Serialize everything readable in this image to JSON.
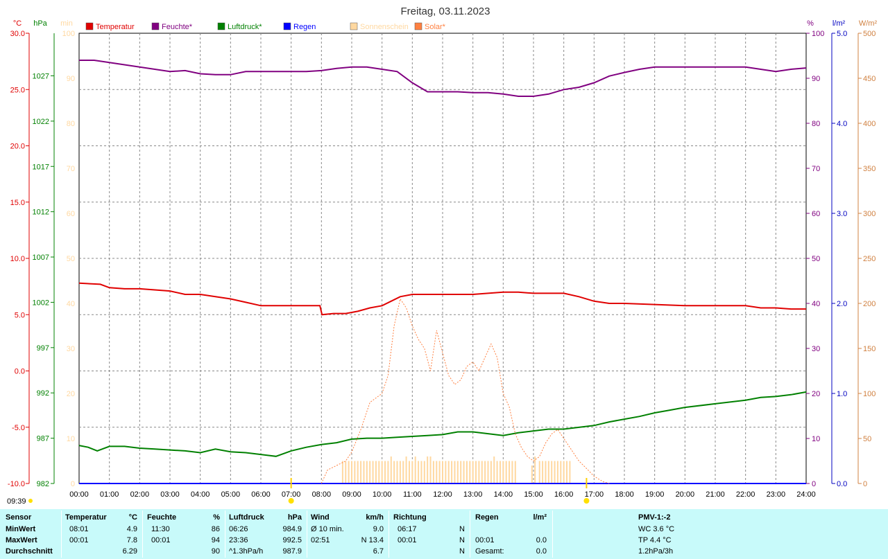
{
  "chart_data": {
    "type": "line",
    "title": "Freitag, 03.11.2023",
    "x": [
      "00:00",
      "01:00",
      "02:00",
      "03:00",
      "04:00",
      "05:00",
      "06:00",
      "07:00",
      "08:00",
      "09:00",
      "10:00",
      "11:00",
      "12:00",
      "13:00",
      "14:00",
      "15:00",
      "16:00",
      "17:00",
      "18:00",
      "19:00",
      "20:00",
      "21:00",
      "22:00",
      "23:00",
      "24:00"
    ],
    "axes": {
      "temperature": {
        "unit": "°C",
        "range": [
          -10,
          30
        ],
        "ticks": [
          "30.0",
          "25.0",
          "20.0",
          "15.0",
          "10.0",
          "5.0",
          "0.0",
          "-5.0",
          "-10.0"
        ],
        "color": "#e00000"
      },
      "pressure": {
        "unit": "hPa",
        "range": [
          982,
          1031.7
        ],
        "ticks": [
          "1027",
          "1022",
          "1017",
          "1012",
          "1007",
          "1002",
          "997",
          "992",
          "987",
          "982"
        ],
        "color": "#008000"
      },
      "sunshine": {
        "unit": "min",
        "range": [
          0,
          100
        ],
        "ticks": [
          "100",
          "90",
          "80",
          "70",
          "60",
          "50",
          "40",
          "30",
          "20",
          "10",
          "0"
        ],
        "color": "#ffd8a0"
      },
      "humidity": {
        "unit": "%",
        "range": [
          0,
          100
        ],
        "ticks": [
          "100",
          "90",
          "80",
          "70",
          "60",
          "50",
          "40",
          "30",
          "20",
          "10",
          "0"
        ],
        "color": "#800080"
      },
      "rain": {
        "unit": "l/m²",
        "range": [
          0,
          5
        ],
        "ticks": [
          "5.0",
          "4.0",
          "3.0",
          "2.0",
          "1.0",
          "0.0"
        ],
        "color": "#0000c0"
      },
      "solar": {
        "unit": "W/m²",
        "range": [
          0,
          500
        ],
        "ticks": [
          "500",
          "450",
          "400",
          "350",
          "300",
          "250",
          "200",
          "150",
          "100",
          "50",
          "0"
        ],
        "color": "#d08040"
      }
    },
    "legend": [
      {
        "name": "Temperatur",
        "color": "#e00000"
      },
      {
        "name": "Feuchte*",
        "color": "#800080"
      },
      {
        "name": "Luftdruck*",
        "color": "#008000"
      },
      {
        "name": "Regen",
        "color": "#0000ff"
      },
      {
        "name": "Sonnenschein",
        "color": "#ffd8a0"
      },
      {
        "name": "Solar*",
        "color": "#ff8040"
      }
    ],
    "series": [
      {
        "name": "Temperatur",
        "color": "#e00000",
        "points": [
          [
            0,
            7.8
          ],
          [
            0.7,
            7.7
          ],
          [
            1,
            7.4
          ],
          [
            1.5,
            7.3
          ],
          [
            2,
            7.3
          ],
          [
            2.5,
            7.2
          ],
          [
            3,
            7.1
          ],
          [
            3.5,
            6.8
          ],
          [
            4,
            6.8
          ],
          [
            4.5,
            6.6
          ],
          [
            5,
            6.4
          ],
          [
            5.5,
            6.1
          ],
          [
            6,
            5.8
          ],
          [
            6.5,
            5.8
          ],
          [
            7,
            5.8
          ],
          [
            7.5,
            5.8
          ],
          [
            7.95,
            5.8
          ],
          [
            8.02,
            5.0
          ],
          [
            8.4,
            5.1
          ],
          [
            8.8,
            5.1
          ],
          [
            9.2,
            5.3
          ],
          [
            9.6,
            5.6
          ],
          [
            10,
            5.8
          ],
          [
            10.3,
            6.2
          ],
          [
            10.6,
            6.6
          ],
          [
            11,
            6.8
          ],
          [
            11.5,
            6.8
          ],
          [
            12,
            6.8
          ],
          [
            12.5,
            6.8
          ],
          [
            13,
            6.8
          ],
          [
            13.5,
            6.9
          ],
          [
            14,
            7.0
          ],
          [
            14.5,
            7.0
          ],
          [
            15,
            6.9
          ],
          [
            15.5,
            6.9
          ],
          [
            16,
            6.9
          ],
          [
            16.5,
            6.6
          ],
          [
            17,
            6.2
          ],
          [
            17.5,
            6.0
          ],
          [
            18,
            6.0
          ],
          [
            19,
            5.9
          ],
          [
            20,
            5.8
          ],
          [
            21,
            5.8
          ],
          [
            22,
            5.8
          ],
          [
            22.5,
            5.6
          ],
          [
            23,
            5.6
          ],
          [
            23.5,
            5.5
          ],
          [
            24,
            5.5
          ]
        ]
      },
      {
        "name": "Feuchte*",
        "color": "#800080",
        "points": [
          [
            0,
            94
          ],
          [
            0.5,
            94
          ],
          [
            1,
            93.5
          ],
          [
            1.5,
            93
          ],
          [
            2,
            92.5
          ],
          [
            2.5,
            92
          ],
          [
            3,
            91.5
          ],
          [
            3.5,
            91.7
          ],
          [
            4,
            91
          ],
          [
            4.5,
            90.8
          ],
          [
            5,
            90.8
          ],
          [
            5.5,
            91.5
          ],
          [
            6,
            91.5
          ],
          [
            6.5,
            91.5
          ],
          [
            7,
            91.5
          ],
          [
            7.5,
            91.5
          ],
          [
            8,
            91.7
          ],
          [
            8.5,
            92.2
          ],
          [
            9,
            92.5
          ],
          [
            9.5,
            92.5
          ],
          [
            10,
            92
          ],
          [
            10.5,
            91.5
          ],
          [
            11,
            89
          ],
          [
            11.5,
            87
          ],
          [
            12,
            87
          ],
          [
            12.5,
            87
          ],
          [
            13,
            86.8
          ],
          [
            13.5,
            86.8
          ],
          [
            14,
            86.5
          ],
          [
            14.5,
            86
          ],
          [
            15,
            86
          ],
          [
            15.5,
            86.5
          ],
          [
            16,
            87.5
          ],
          [
            16.5,
            88
          ],
          [
            17,
            89
          ],
          [
            17.5,
            90.5
          ],
          [
            18,
            91.3
          ],
          [
            18.5,
            92
          ],
          [
            19,
            92.5
          ],
          [
            20,
            92.5
          ],
          [
            21,
            92.5
          ],
          [
            22,
            92.5
          ],
          [
            22.5,
            92
          ],
          [
            23,
            91.5
          ],
          [
            23.5,
            92
          ],
          [
            24,
            92.3
          ]
        ]
      },
      {
        "name": "Luftdruck*",
        "color": "#008000",
        "points": [
          [
            0,
            986.2
          ],
          [
            0.3,
            986.0
          ],
          [
            0.6,
            985.6
          ],
          [
            1,
            986.1
          ],
          [
            1.5,
            986.1
          ],
          [
            2,
            985.9
          ],
          [
            2.5,
            985.8
          ],
          [
            3,
            985.7
          ],
          [
            3.5,
            985.6
          ],
          [
            4,
            985.4
          ],
          [
            4.5,
            985.8
          ],
          [
            5,
            985.5
          ],
          [
            5.5,
            985.4
          ],
          [
            6,
            985.2
          ],
          [
            6.5,
            985.0
          ],
          [
            7,
            985.6
          ],
          [
            7.5,
            986.0
          ],
          [
            8,
            986.3
          ],
          [
            8.5,
            986.5
          ],
          [
            9,
            986.9
          ],
          [
            9.5,
            987.0
          ],
          [
            10,
            987.0
          ],
          [
            10.5,
            987.1
          ],
          [
            11,
            987.2
          ],
          [
            11.5,
            987.3
          ],
          [
            12,
            987.4
          ],
          [
            12.5,
            987.7
          ],
          [
            13,
            987.7
          ],
          [
            13.5,
            987.5
          ],
          [
            14,
            987.3
          ],
          [
            14.5,
            987.6
          ],
          [
            15,
            987.8
          ],
          [
            15.5,
            988.0
          ],
          [
            16,
            988.0
          ],
          [
            16.5,
            988.2
          ],
          [
            17,
            988.4
          ],
          [
            17.5,
            988.8
          ],
          [
            18,
            989.1
          ],
          [
            18.5,
            989.4
          ],
          [
            19,
            989.8
          ],
          [
            19.5,
            990.1
          ],
          [
            20,
            990.4
          ],
          [
            21,
            990.8
          ],
          [
            22,
            991.2
          ],
          [
            22.5,
            991.5
          ],
          [
            23,
            991.6
          ],
          [
            23.5,
            991.8
          ],
          [
            24,
            992.1
          ]
        ]
      },
      {
        "name": "Regen",
        "color": "#0000ff",
        "points": [
          [
            0,
            0
          ],
          [
            24,
            0
          ]
        ]
      },
      {
        "name": "Solar*",
        "color": "#ff8040",
        "style": "dotted",
        "points": [
          [
            8,
            0
          ],
          [
            8.2,
            15
          ],
          [
            8.5,
            20
          ],
          [
            8.8,
            25
          ],
          [
            9,
            35
          ],
          [
            9.3,
            60
          ],
          [
            9.6,
            90
          ],
          [
            10,
            100
          ],
          [
            10.2,
            120
          ],
          [
            10.4,
            175
          ],
          [
            10.6,
            205
          ],
          [
            10.8,
            195
          ],
          [
            11,
            175
          ],
          [
            11.2,
            160
          ],
          [
            11.4,
            150
          ],
          [
            11.6,
            125
          ],
          [
            11.8,
            170
          ],
          [
            12,
            145
          ],
          [
            12.2,
            120
          ],
          [
            12.4,
            110
          ],
          [
            12.6,
            115
          ],
          [
            12.8,
            130
          ],
          [
            13,
            135
          ],
          [
            13.2,
            125
          ],
          [
            13.4,
            140
          ],
          [
            13.6,
            155
          ],
          [
            13.8,
            140
          ],
          [
            14,
            100
          ],
          [
            14.2,
            85
          ],
          [
            14.4,
            55
          ],
          [
            14.6,
            40
          ],
          [
            14.8,
            30
          ],
          [
            15,
            25
          ],
          [
            15.2,
            30
          ],
          [
            15.4,
            45
          ],
          [
            15.6,
            55
          ],
          [
            15.8,
            60
          ],
          [
            16,
            50
          ],
          [
            16.2,
            40
          ],
          [
            16.5,
            25
          ],
          [
            16.8,
            15
          ],
          [
            17,
            8
          ],
          [
            17.3,
            2
          ],
          [
            17.5,
            0
          ]
        ]
      }
    ],
    "sunshine_bars": {
      "name": "Sonnenschein",
      "color": "#ffd8a0",
      "unit": "min",
      "values": [
        [
          8.7,
          5
        ],
        [
          8.8,
          5
        ],
        [
          8.9,
          5
        ],
        [
          9.0,
          5
        ],
        [
          9.1,
          5
        ],
        [
          9.2,
          5
        ],
        [
          9.3,
          5
        ],
        [
          9.4,
          5
        ],
        [
          9.5,
          5
        ],
        [
          9.6,
          5
        ],
        [
          9.7,
          5
        ],
        [
          9.8,
          5
        ],
        [
          9.9,
          5
        ],
        [
          10.0,
          5
        ],
        [
          10.1,
          5
        ],
        [
          10.2,
          5
        ],
        [
          10.3,
          6
        ],
        [
          10.4,
          5
        ],
        [
          10.5,
          5
        ],
        [
          10.6,
          5
        ],
        [
          10.7,
          5
        ],
        [
          10.8,
          6
        ],
        [
          10.9,
          5
        ],
        [
          11.0,
          5
        ],
        [
          11.1,
          6
        ],
        [
          11.2,
          5
        ],
        [
          11.3,
          5
        ],
        [
          11.4,
          5
        ],
        [
          11.5,
          6
        ],
        [
          11.6,
          6
        ],
        [
          11.7,
          5
        ],
        [
          11.8,
          5
        ],
        [
          11.9,
          5
        ],
        [
          12.0,
          5
        ],
        [
          12.1,
          5
        ],
        [
          12.2,
          5
        ],
        [
          12.3,
          5
        ],
        [
          12.4,
          5
        ],
        [
          12.5,
          5
        ],
        [
          12.6,
          5
        ],
        [
          12.7,
          5
        ],
        [
          12.8,
          5
        ],
        [
          12.9,
          5
        ],
        [
          13.0,
          5
        ],
        [
          13.1,
          5
        ],
        [
          13.2,
          5
        ],
        [
          13.3,
          5
        ],
        [
          13.4,
          5
        ],
        [
          13.5,
          5
        ],
        [
          13.6,
          5
        ],
        [
          13.7,
          6
        ],
        [
          13.8,
          5
        ],
        [
          13.9,
          5
        ],
        [
          14.0,
          5
        ],
        [
          14.1,
          5
        ],
        [
          14.2,
          5
        ],
        [
          14.3,
          5
        ],
        [
          14.4,
          5
        ],
        [
          14.95,
          4
        ],
        [
          15.05,
          6
        ],
        [
          15.2,
          5
        ],
        [
          15.3,
          5
        ],
        [
          15.4,
          5
        ],
        [
          15.5,
          5
        ],
        [
          15.6,
          5
        ],
        [
          15.7,
          5
        ],
        [
          15.8,
          5
        ],
        [
          15.9,
          5
        ],
        [
          16.0,
          5
        ],
        [
          16.1,
          5
        ],
        [
          16.2,
          5
        ]
      ]
    },
    "markers": {
      "sunrise": "07:00",
      "sunset": "16:45",
      "time_label": "09:39"
    },
    "grid": true
  },
  "stats": {
    "headers": {
      "sensor": "Sensor",
      "temperatur": "Temperatur",
      "temp_unit": "°C",
      "feuchte": "Feuchte",
      "feuchte_unit": "%",
      "luftdruck": "Luftdruck",
      "luftdruck_unit": "hPa",
      "wind": "Wind",
      "wind_unit": "km/h",
      "richtung": "Richtung",
      "regen": "Regen",
      "regen_unit": "l/m²",
      "pmv": "PMV-1:-2"
    },
    "rows": [
      {
        "label": "MinWert",
        "t_time": "08:01",
        "t_val": "4.9",
        "f_time": "11:30",
        "f_val": "86",
        "p_time": "06:26",
        "p_val": "984.9",
        "w_label": "Ø 10 min.",
        "w_val": "9.0",
        "r_time": "06:17",
        "r_dir": "N",
        "rain_time": "",
        "rain_val": "",
        "pmv": "WC 3.6 °C"
      },
      {
        "label": "MaxWert",
        "t_time": "00:01",
        "t_val": "7.8",
        "f_time": "00:01",
        "f_val": "94",
        "p_time": "23:36",
        "p_val": "992.5",
        "w_label": "02:51",
        "w_val": "N 13.4",
        "r_time": "00:01",
        "r_dir": "N",
        "rain_time": "00:01",
        "rain_val": "0.0",
        "pmv": "TP 4.4 °C"
      },
      {
        "label": "Durchschnitt",
        "t_time": "",
        "t_val": "6.29",
        "f_time": "",
        "f_val": "90",
        "p_time": "^1.3hPa/h",
        "p_val": "987.9",
        "w_label": "",
        "w_val": "6.7",
        "r_time": "",
        "r_dir": "N",
        "rain_time": "Gesamt:",
        "rain_val": "0.0",
        "pmv": "1.2hPa/3h"
      }
    ]
  }
}
